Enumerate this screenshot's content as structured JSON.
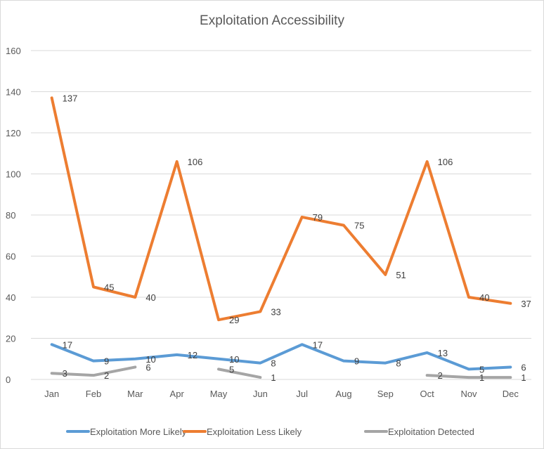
{
  "chart_data": {
    "type": "line",
    "title": "Exploitation Accessibility",
    "xlabel": "",
    "ylabel": "",
    "categories": [
      "Jan",
      "Feb",
      "Mar",
      "Apr",
      "May",
      "Jun",
      "Jul",
      "Aug",
      "Sep",
      "Oct",
      "Nov",
      "Dec"
    ],
    "ylim": [
      0,
      160
    ],
    "yticks": [
      0,
      20,
      40,
      60,
      80,
      100,
      120,
      140,
      160
    ],
    "grid": true,
    "legend_position": "bottom",
    "series": [
      {
        "name": "Exploitation More Likely",
        "color": "#5b9bd5",
        "values": [
          17,
          9,
          10,
          12,
          10,
          8,
          17,
          9,
          8,
          13,
          5,
          6
        ]
      },
      {
        "name": "Exploitation Less Likely",
        "color": "#ed7d31",
        "values": [
          137,
          45,
          40,
          106,
          29,
          33,
          79,
          75,
          51,
          106,
          40,
          37
        ]
      },
      {
        "name": "Exploitation Detected",
        "color": "#a5a5a5",
        "values": [
          3,
          2,
          6,
          null,
          5,
          1,
          null,
          null,
          null,
          2,
          1,
          1
        ]
      }
    ]
  }
}
